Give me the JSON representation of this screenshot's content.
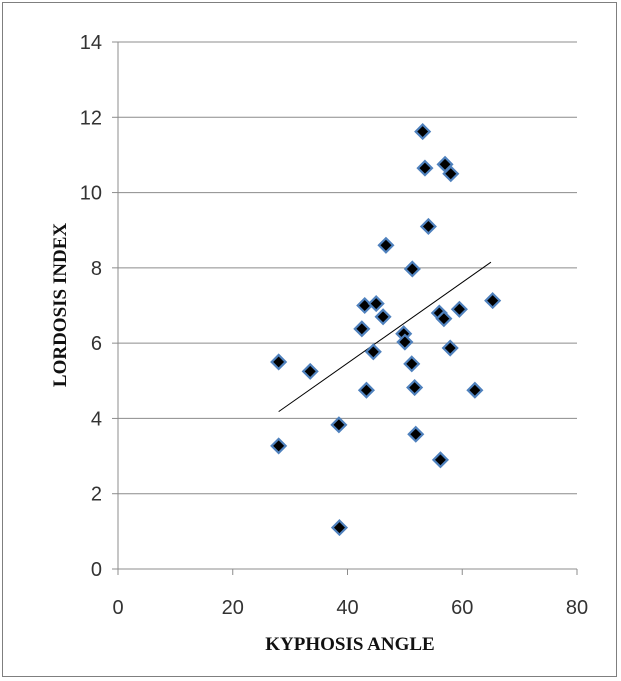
{
  "chart_data": {
    "type": "scatter",
    "xlabel": "KYPHOSIS ANGLE",
    "ylabel": "LORDOSIS INDEX",
    "xlim": [
      0,
      80
    ],
    "ylim": [
      0,
      14
    ],
    "xticks": [
      0,
      20,
      40,
      60,
      80
    ],
    "yticks": [
      0,
      2,
      4,
      6,
      8,
      10,
      12,
      14
    ],
    "grid": "horizontal",
    "legend": "none",
    "marker": "diamond",
    "marker_color": "#000000",
    "marker_edge_color": "#4f81bd",
    "trendline": {
      "type": "linear",
      "x": [
        28,
        65
      ],
      "y": [
        4.18,
        8.15
      ],
      "color": "#000000"
    },
    "points": [
      {
        "x": 28,
        "y": 5.5
      },
      {
        "x": 28,
        "y": 3.27
      },
      {
        "x": 33.5,
        "y": 5.25
      },
      {
        "x": 38.5,
        "y": 3.83
      },
      {
        "x": 38.6,
        "y": 1.1
      },
      {
        "x": 42.5,
        "y": 6.38
      },
      {
        "x": 43,
        "y": 7.0
      },
      {
        "x": 43.3,
        "y": 4.75
      },
      {
        "x": 44.5,
        "y": 5.77
      },
      {
        "x": 45,
        "y": 7.05
      },
      {
        "x": 46.2,
        "y": 6.7
      },
      {
        "x": 46.7,
        "y": 8.6
      },
      {
        "x": 49.8,
        "y": 6.25
      },
      {
        "x": 50,
        "y": 6.03
      },
      {
        "x": 51.2,
        "y": 5.45
      },
      {
        "x": 51.3,
        "y": 7.97
      },
      {
        "x": 51.7,
        "y": 4.82
      },
      {
        "x": 51.9,
        "y": 3.58
      },
      {
        "x": 53.1,
        "y": 11.62
      },
      {
        "x": 53.5,
        "y": 10.65
      },
      {
        "x": 54.1,
        "y": 9.1
      },
      {
        "x": 56,
        "y": 6.8
      },
      {
        "x": 56.2,
        "y": 2.9
      },
      {
        "x": 56.8,
        "y": 6.65
      },
      {
        "x": 57,
        "y": 10.75
      },
      {
        "x": 57.9,
        "y": 5.87
      },
      {
        "x": 58,
        "y": 10.5
      },
      {
        "x": 59.5,
        "y": 6.9
      },
      {
        "x": 62.2,
        "y": 4.75
      },
      {
        "x": 65.3,
        "y": 7.13
      }
    ]
  }
}
